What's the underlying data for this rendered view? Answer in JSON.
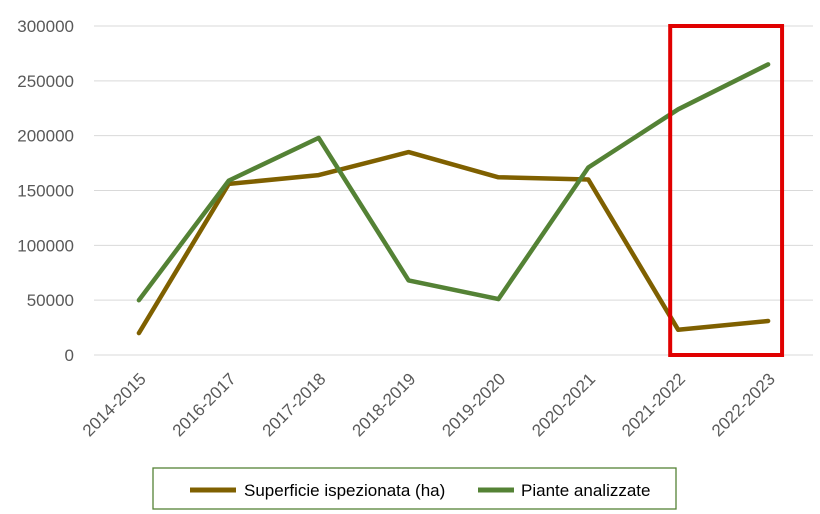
{
  "chart_data": {
    "type": "line",
    "categories": [
      "2014-2015",
      "2016-2017",
      "2017-2018",
      "2018-2019",
      "2019-2020",
      "2020-2021",
      "2021-2022",
      "2022-2023"
    ],
    "series": [
      {
        "name": "Superficie ispezionata (ha)",
        "color": "#7f6000",
        "values": [
          20000,
          156000,
          164000,
          185000,
          162000,
          160000,
          23000,
          31000
        ]
      },
      {
        "name": "Piante analizzate",
        "color": "#548235",
        "values": [
          50000,
          159000,
          198000,
          68000,
          51000,
          171000,
          224000,
          265000
        ]
      }
    ],
    "ylim": [
      0,
      300000
    ],
    "yticks": [
      "300000",
      "250000",
      "200000",
      "150000",
      "100000",
      "50000",
      "0"
    ],
    "grid": true,
    "legend_position": "bottom",
    "highlight": {
      "label": "highlight-box",
      "color": "#e00000",
      "categories": [
        "2021-2022",
        "2022-2023"
      ]
    }
  }
}
